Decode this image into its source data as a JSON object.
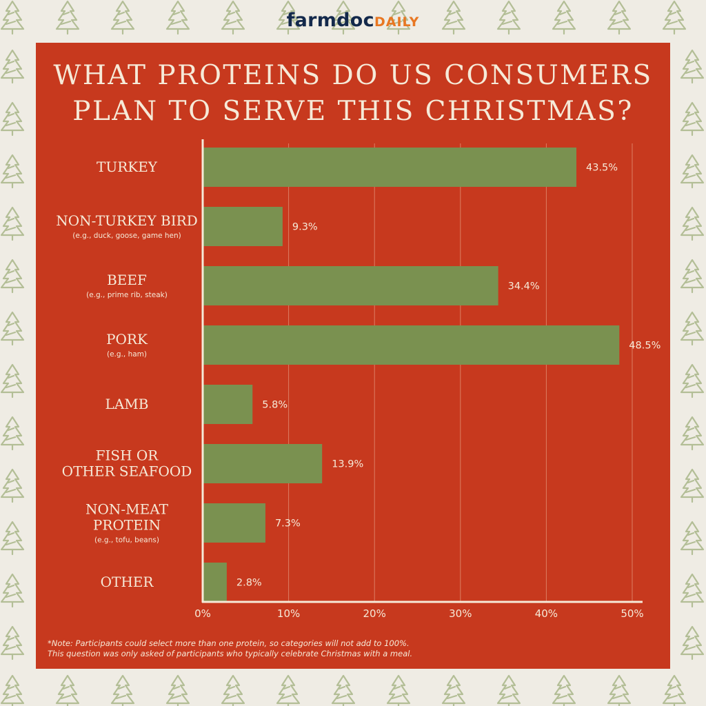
{
  "brand": {
    "part1": "farmdoc",
    "part2": "DAILY"
  },
  "colors": {
    "background": "#efece4",
    "panel": "#c7391e",
    "bar": "#7a9150",
    "text": "#f6ead8",
    "tree": "#b3be96"
  },
  "background_icon": "christmas-tree-icon",
  "note": {
    "line1": "*Note: Participants could select more than one protein, so categories will not add to 100%.",
    "line2": "This question was only asked of participants who typically celebrate Christmas with a meal."
  },
  "chart_data": {
    "type": "bar",
    "orientation": "horizontal",
    "title": [
      "WHAT PROTEINS DO US CONSUMERS",
      "PLAN TO SERVE THIS CHRISTMAS?"
    ],
    "categories": [
      {
        "lines": [
          "TURKEY"
        ],
        "sub": ""
      },
      {
        "lines": [
          "NON-TURKEY BIRD"
        ],
        "sub": "(e.g., duck, goose, game hen)"
      },
      {
        "lines": [
          "BEEF"
        ],
        "sub": "(e.g., prime rib, steak)"
      },
      {
        "lines": [
          "PORK"
        ],
        "sub": "(e.g., ham)"
      },
      {
        "lines": [
          "LAMB"
        ],
        "sub": ""
      },
      {
        "lines": [
          "FISH OR",
          "OTHER SEAFOOD"
        ],
        "sub": ""
      },
      {
        "lines": [
          "NON-MEAT",
          "PROTEIN"
        ],
        "sub": "(e.g., tofu, beans)"
      },
      {
        "lines": [
          "OTHER"
        ],
        "sub": ""
      }
    ],
    "values": [
      43.5,
      9.3,
      34.4,
      48.5,
      5.8,
      13.9,
      7.3,
      2.8
    ],
    "data_labels": [
      "43.5%",
      "9.3%",
      "34.4%",
      "48.5%",
      "5.8%",
      "13.9%",
      "7.3%",
      "2.8%"
    ],
    "xlim": [
      0,
      50
    ],
    "xticks": [
      0,
      10,
      20,
      30,
      40,
      50
    ],
    "xtick_labels": [
      "0%",
      "10%",
      "20%",
      "30%",
      "40%",
      "50%"
    ],
    "grid": "vertical"
  }
}
